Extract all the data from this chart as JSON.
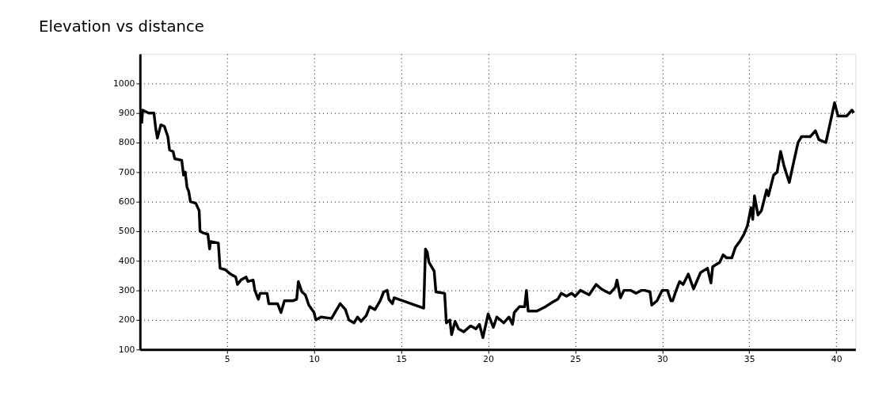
{
  "chart_data": {
    "type": "line",
    "title": "Elevation vs distance",
    "xlim": [
      0,
      41.1
    ],
    "xticks": [
      5,
      10,
      15,
      20,
      25,
      30,
      35,
      40
    ],
    "ylim": [
      100,
      1100
    ],
    "yticks": [
      100,
      200,
      300,
      400,
      500,
      600,
      700,
      800,
      900,
      1000
    ],
    "grid": true,
    "line_style": "solid",
    "marker": "none",
    "series": [
      {
        "color": "#000000",
        "x": [
          0.1,
          0.15,
          0.5,
          0.8,
          0.9,
          1.0,
          1.2,
          1.4,
          1.6,
          1.7,
          1.9,
          2.0,
          2.4,
          2.5,
          2.6,
          2.7,
          2.8,
          2.9,
          3.2,
          3.4,
          3.45,
          3.6,
          3.9,
          4.0,
          4.05,
          4.5,
          4.6,
          4.9,
          5.2,
          5.5,
          5.6,
          5.8,
          6.1,
          6.2,
          6.5,
          6.6,
          6.8,
          6.9,
          7.3,
          7.4,
          7.9,
          8.1,
          8.3,
          8.8,
          9.0,
          9.1,
          9.3,
          9.5,
          9.7,
          10.0,
          10.1,
          10.4,
          11.0,
          11.3,
          11.5,
          11.8,
          12.0,
          12.3,
          12.5,
          12.7,
          13.0,
          13.2,
          13.5,
          13.8,
          14.0,
          14.2,
          14.3,
          14.5,
          14.6,
          16.3,
          16.4,
          16.5,
          16.6,
          16.9,
          17.0,
          17.5,
          17.6,
          17.8,
          17.9,
          18.1,
          18.3,
          18.6,
          19.0,
          19.3,
          19.5,
          19.7,
          20.0,
          20.3,
          20.5,
          20.9,
          21.2,
          21.4,
          21.5,
          21.8,
          22.1,
          22.2,
          22.3,
          22.8,
          23.3,
          23.7,
          24.0,
          24.2,
          24.5,
          24.8,
          25.0,
          25.3,
          25.8,
          26.2,
          26.5,
          26.8,
          27.0,
          27.3,
          27.4,
          27.6,
          27.8,
          28.2,
          28.5,
          28.8,
          29.0,
          29.3,
          29.4,
          29.7,
          30.0,
          30.3,
          30.5,
          30.6,
          30.8,
          31.0,
          31.2,
          31.5,
          31.8,
          32.2,
          32.6,
          32.8,
          32.9,
          33.3,
          33.5,
          33.7,
          34.0,
          34.2,
          34.5,
          34.7,
          34.9,
          35.1,
          35.2,
          35.3,
          35.5,
          35.7,
          36.0,
          36.1,
          36.4,
          36.6,
          36.8,
          37.0,
          37.3,
          37.5,
          37.8,
          38.0,
          38.5,
          38.8,
          39.0,
          39.4,
          39.7,
          39.9,
          40.1,
          40.6,
          40.9,
          41.0
        ],
        "values": [
          865,
          910,
          900,
          900,
          850,
          815,
          860,
          855,
          820,
          775,
          770,
          745,
          740,
          690,
          700,
          650,
          635,
          600,
          595,
          570,
          500,
          495,
          490,
          440,
          465,
          460,
          375,
          370,
          355,
          345,
          320,
          335,
          345,
          330,
          335,
          300,
          270,
          290,
          290,
          255,
          255,
          225,
          265,
          265,
          270,
          330,
          295,
          285,
          250,
          225,
          200,
          210,
          205,
          235,
          255,
          235,
          200,
          190,
          210,
          195,
          215,
          245,
          235,
          265,
          295,
          300,
          270,
          255,
          275,
          240,
          440,
          430,
          395,
          365,
          295,
          290,
          190,
          200,
          150,
          195,
          170,
          160,
          180,
          170,
          185,
          140,
          220,
          175,
          210,
          190,
          210,
          185,
          225,
          245,
          245,
          300,
          230,
          230,
          245,
          260,
          270,
          290,
          280,
          290,
          280,
          300,
          285,
          320,
          305,
          295,
          290,
          310,
          335,
          275,
          300,
          300,
          290,
          300,
          300,
          295,
          250,
          265,
          300,
          300,
          265,
          265,
          300,
          330,
          320,
          355,
          305,
          360,
          375,
          325,
          380,
          395,
          420,
          410,
          410,
          445,
          470,
          490,
          520,
          580,
          540,
          620,
          555,
          570,
          640,
          620,
          690,
          700,
          770,
          720,
          665,
          720,
          800,
          820,
          820,
          840,
          810,
          800,
          880,
          935,
          890,
          890,
          910,
          900
        ]
      }
    ]
  }
}
